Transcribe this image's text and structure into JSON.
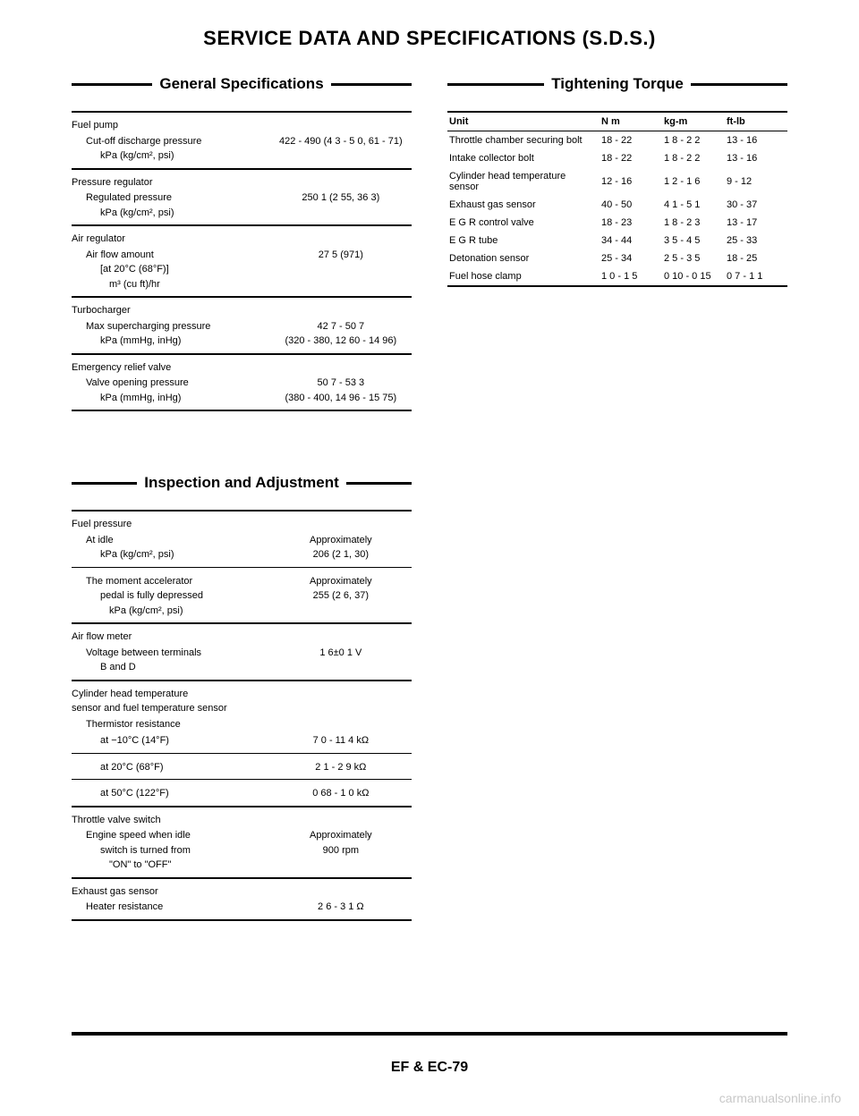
{
  "title": "SERVICE DATA AND SPECIFICATIONS (S.D.S.)",
  "general": {
    "heading": "General Specifications",
    "items": [
      {
        "head": "Fuel pump",
        "rows": [
          {
            "l1": "Cut-off discharge pressure",
            "l2": "kPa (kg/cm², psi)",
            "v": "422 - 490 (4 3 - 5 0, 61 - 71)"
          }
        ]
      },
      {
        "head": "Pressure regulator",
        "rows": [
          {
            "l1": "Regulated pressure",
            "l2": "kPa (kg/cm², psi)",
            "v": "250 1 (2 55, 36 3)"
          }
        ]
      },
      {
        "head": "Air regulator",
        "rows": [
          {
            "l1": "Air flow amount",
            "l2": "[at 20°C (68°F)]",
            "l3": "m³ (cu ft)/hr",
            "v": "27 5 (971)"
          }
        ]
      },
      {
        "head": "Turbocharger",
        "rows": [
          {
            "l1": "Max supercharging pressure",
            "l2": "kPa (mmHg, inHg)",
            "v": "42 7 - 50 7",
            "v2": "(320 - 380, 12 60 - 14 96)"
          }
        ]
      },
      {
        "head": "Emergency relief valve",
        "rows": [
          {
            "l1": "Valve opening pressure",
            "l2": "kPa (mmHg, inHg)",
            "v": "50 7 - 53 3",
            "v2": "(380 - 400, 14 96 - 15 75)"
          }
        ]
      }
    ]
  },
  "inspection": {
    "heading": "Inspection and Adjustment",
    "items": [
      {
        "head": "Fuel pressure",
        "rows": [
          {
            "l1": "At idle",
            "l2": "kPa (kg/cm², psi)",
            "v": "Approximately",
            "v2": "206 (2 1, 30)"
          }
        ],
        "thinAfter": true,
        "rows2": [
          {
            "l1": "The moment accelerator",
            "l2": "pedal is fully depressed",
            "l3": "kPa (kg/cm², psi)",
            "v": "Approximately",
            "v2": "255 (2 6, 37)"
          }
        ]
      },
      {
        "head": "Air flow meter",
        "rows": [
          {
            "l1": "Voltage between terminals",
            "l2": "B and D",
            "v": "1 6±0 1 V"
          }
        ]
      },
      {
        "head": "Cylinder head temperature",
        "head2": "sensor and fuel temperature sensor",
        "rows": [
          {
            "l1": "Thermistor resistance"
          },
          {
            "l2only": "at −10°C (14°F)",
            "v": "7 0 - 11 4 kΩ"
          }
        ],
        "thinAfter": true,
        "rows2": [
          {
            "l2only": "at   20°C (68°F)",
            "v": "2 1 - 2 9 kΩ"
          }
        ],
        "thinAfter2": true,
        "rows3": [
          {
            "l2only": "at   50°C (122°F)",
            "v": "0 68 - 1 0 kΩ"
          }
        ]
      },
      {
        "head": "Throttle valve switch",
        "rows": [
          {
            "l1": "Engine speed when idle",
            "l2": "switch is turned from",
            "l3": "\"ON\" to \"OFF\"",
            "v": "Approximately",
            "v2": "900 rpm"
          }
        ]
      },
      {
        "head": "Exhaust gas sensor",
        "rows": [
          {
            "l1": "Heater resistance",
            "v": "2 6 - 3 1 Ω"
          }
        ]
      }
    ]
  },
  "torque": {
    "heading": "Tightening Torque",
    "cols": [
      "Unit",
      "N m",
      "kg-m",
      "ft-lb"
    ],
    "rows": [
      {
        "n": "Throttle chamber securing bolt",
        "a": "18 - 22",
        "b": "1 8 - 2 2",
        "c": "13 - 16"
      },
      {
        "n": "Intake collector bolt",
        "a": "18 - 22",
        "b": "1 8 - 2 2",
        "c": "13 - 16"
      },
      {
        "n": "Cylinder head temperature sensor",
        "a": "12 - 16",
        "b": "1 2 - 1 6",
        "c": "9 - 12"
      },
      {
        "n": "Exhaust gas sensor",
        "a": "40 - 50",
        "b": "4 1 - 5 1",
        "c": "30 - 37"
      },
      {
        "n": "E G R control valve",
        "a": "18 - 23",
        "b": "1 8 - 2 3",
        "c": "13 - 17"
      },
      {
        "n": "E G R tube",
        "a": "34 - 44",
        "b": "3 5 - 4 5",
        "c": "25 - 33"
      },
      {
        "n": "Detonation sensor",
        "a": "25 - 34",
        "b": "2 5 - 3 5",
        "c": "18 - 25"
      },
      {
        "n": "Fuel hose clamp",
        "a": "1 0 - 1 5",
        "b": "0 10 - 0 15",
        "c": "0 7 - 1 1"
      }
    ]
  },
  "footer": "EF & EC-79",
  "watermark": "carmanualsonline.info"
}
